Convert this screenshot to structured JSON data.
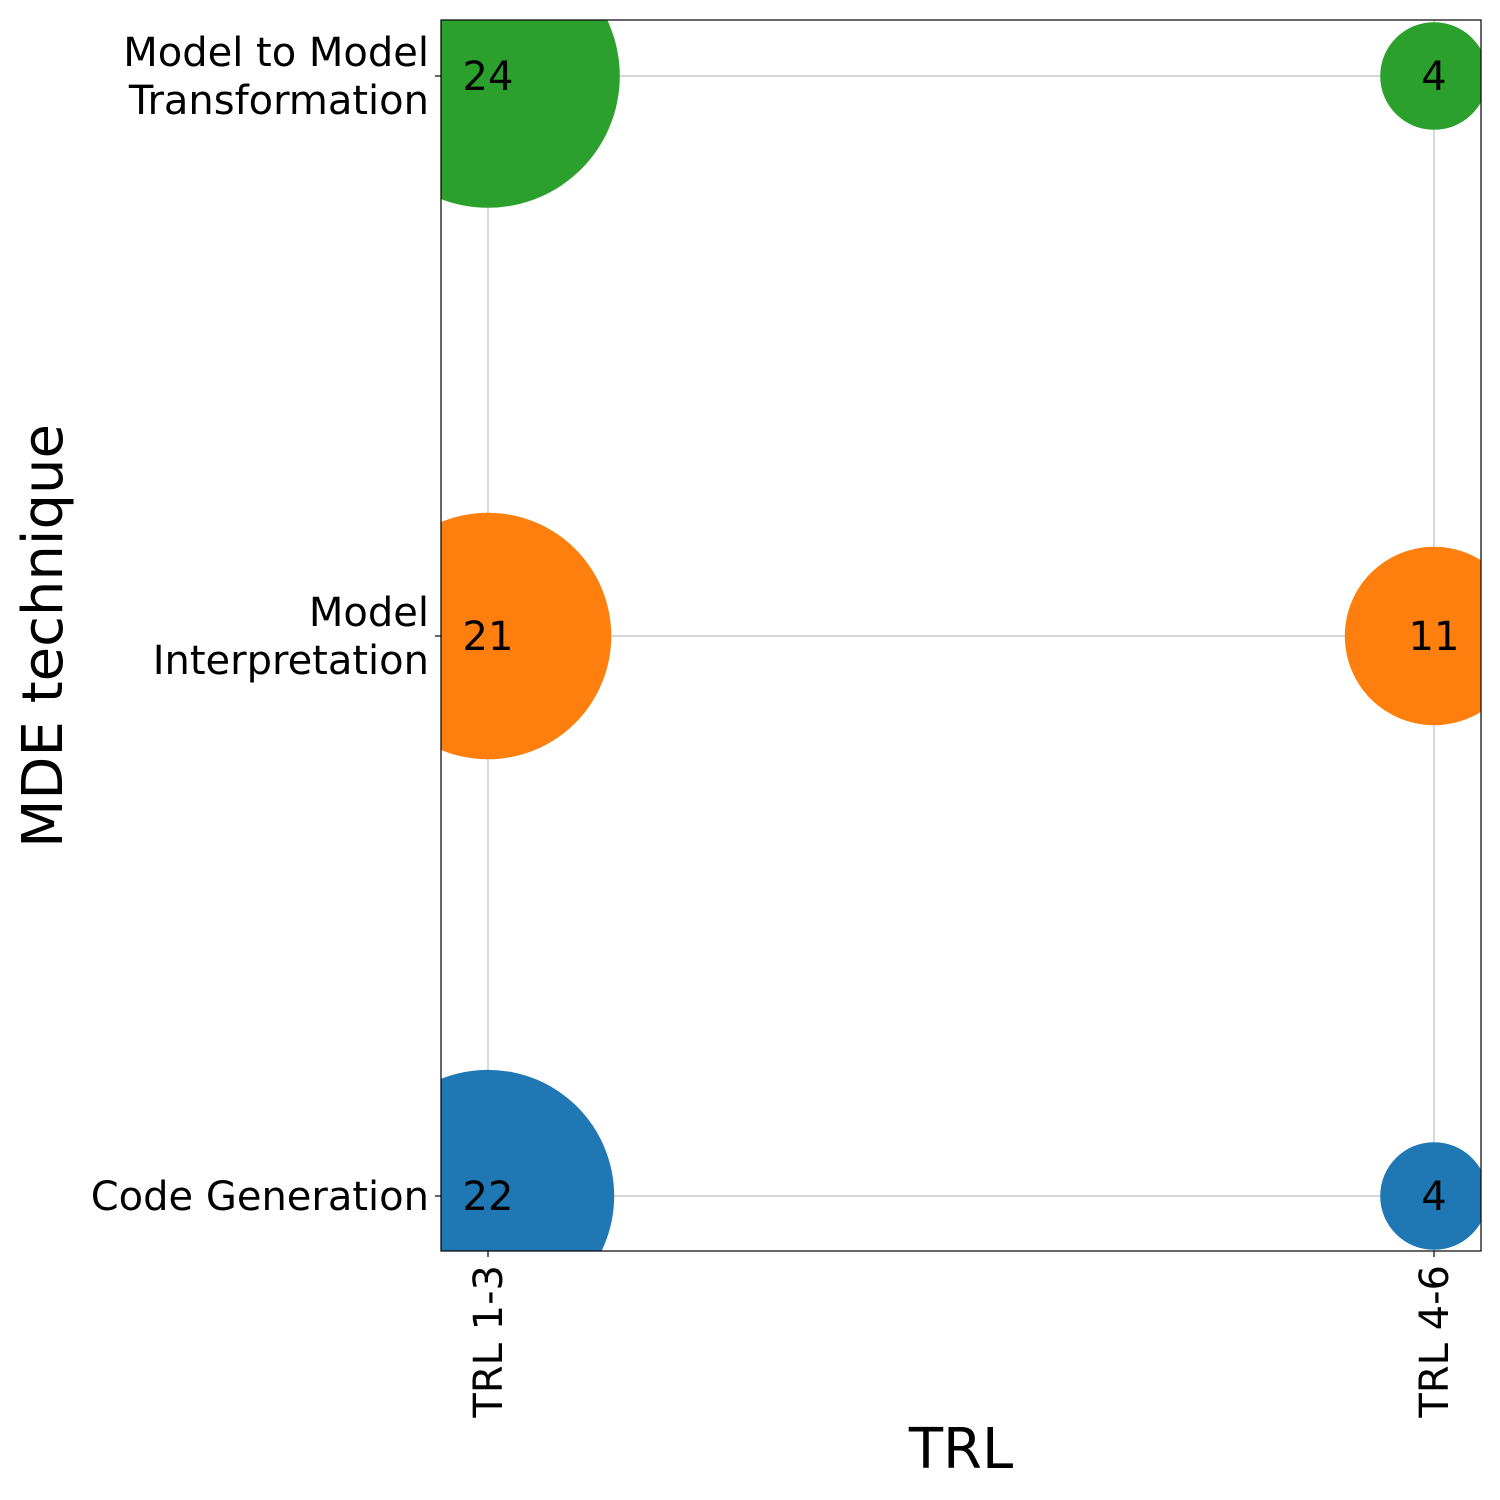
{
  "chart_data": {
    "type": "scatter",
    "subtype": "bubble",
    "title": "",
    "xlabel": "TRL",
    "ylabel": "MDE technique",
    "x_categories": [
      "TRL 1-3",
      "TRL 4-6"
    ],
    "y_categories": [
      [
        "Code Generation"
      ],
      [
        "Model",
        "Interpretation"
      ],
      [
        "Model to Model",
        "Transformation"
      ]
    ],
    "grid": true,
    "legend": "none",
    "series": [
      {
        "category": "Code Generation",
        "color": "#1f77b4",
        "points": [
          {
            "x": "TRL 1-3",
            "value": 22
          },
          {
            "x": "TRL 4-6",
            "value": 4
          }
        ]
      },
      {
        "category": "Model Interpretation",
        "color": "#ff7f0e",
        "points": [
          {
            "x": "TRL 1-3",
            "value": 21
          },
          {
            "x": "TRL 4-6",
            "value": 11
          }
        ]
      },
      {
        "category": "Model to Model Transformation",
        "color": "#2ca02c",
        "points": [
          {
            "x": "TRL 1-3",
            "value": 24
          },
          {
            "x": "TRL 4-6",
            "value": 4
          }
        ]
      }
    ]
  }
}
